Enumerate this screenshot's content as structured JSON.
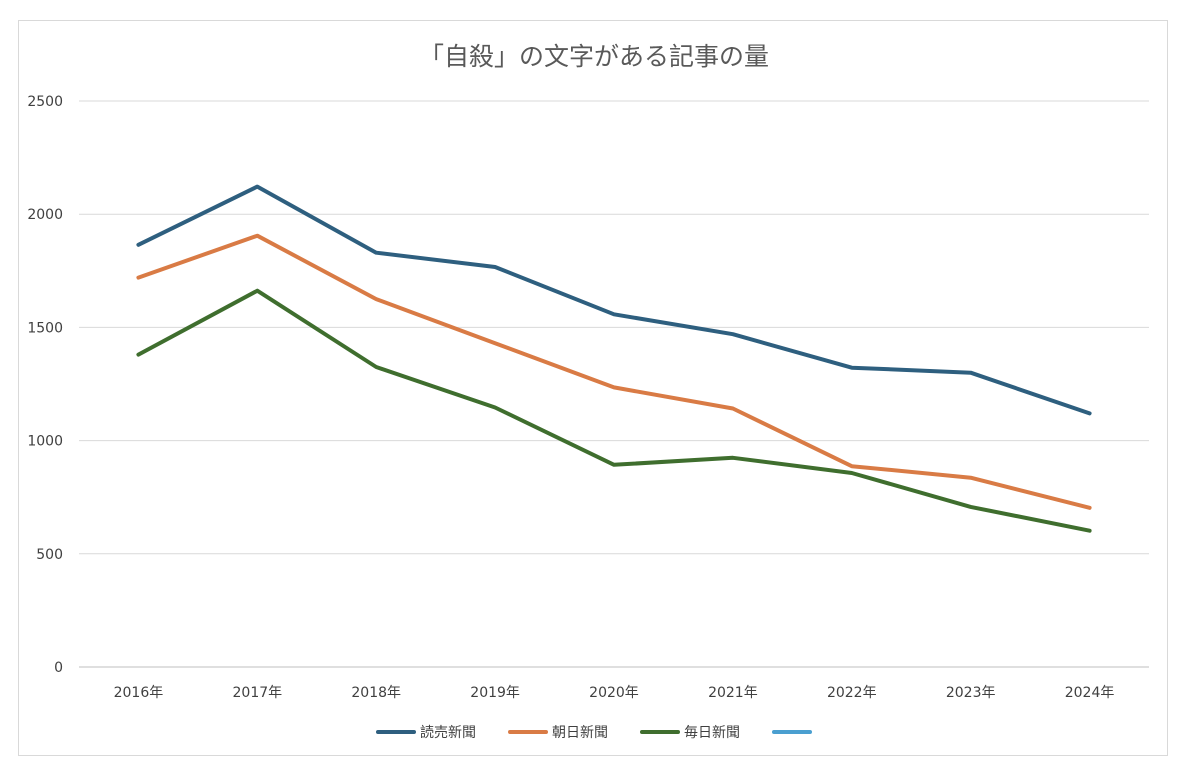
{
  "chart_data": {
    "type": "line",
    "title": "「自殺」の文字がある記事の量",
    "categories": [
      "2016年",
      "2017年",
      "2018年",
      "2019年",
      "2020年",
      "2021年",
      "2022年",
      "2023年",
      "2024年"
    ],
    "ylim": [
      0,
      2500
    ],
    "yticks": [
      "0",
      "500",
      "1000",
      "1500",
      "2000",
      "2500"
    ],
    "grid": true,
    "legend_position": "bottom",
    "series": [
      {
        "name": "読売新聞",
        "color": "#2e5f7f",
        "values": [
          1865,
          2122,
          1830,
          1767,
          1558,
          1470,
          1322,
          1300,
          1120
        ]
      },
      {
        "name": "朝日新聞",
        "color": "#d97b45",
        "values": [
          1720,
          1905,
          1625,
          1430,
          1235,
          1142,
          887,
          836,
          703
        ]
      },
      {
        "name": "毎日新聞",
        "color": "#3f6e2e",
        "values": [
          1380,
          1662,
          1325,
          1146,
          893,
          924,
          857,
          707,
          602
        ]
      }
    ],
    "legend_extra_swatch_color": "#4a9fd0"
  }
}
